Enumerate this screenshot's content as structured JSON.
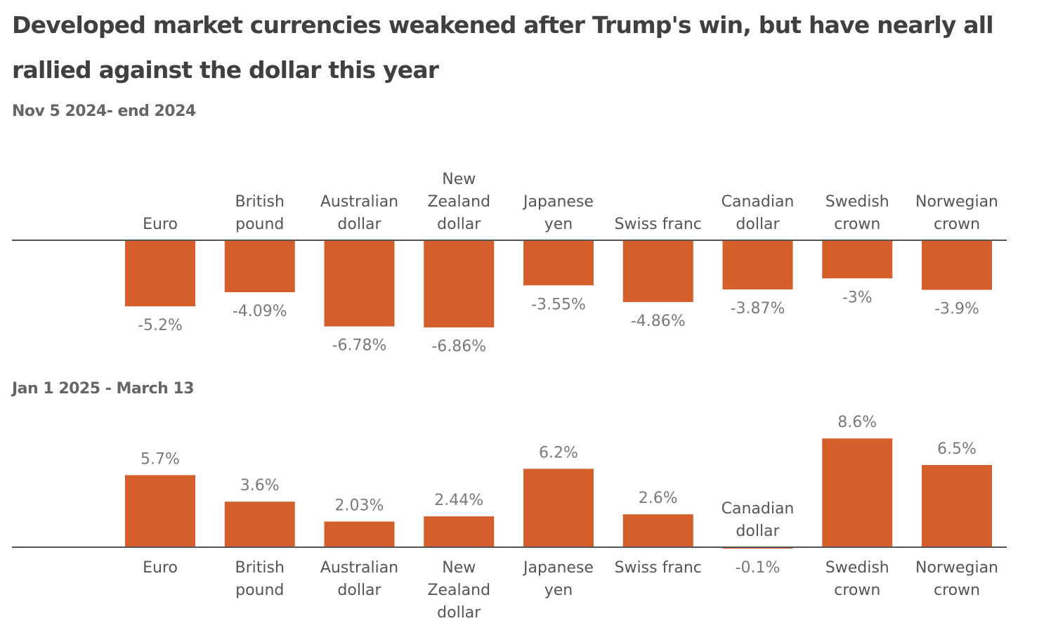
{
  "title": "Developed market currencies weakened after Trump's win, but have nearly all rallied against the dollar this year",
  "colors": {
    "bar": "#d45f2b",
    "axis": "#555555",
    "title": "#404040",
    "subtitle": "#666666",
    "value_label": "#7a7a7a",
    "category_label": "#555555"
  },
  "chart_data": [
    {
      "type": "bar",
      "title": "Nov 5 2024- end 2024",
      "xlabel": "",
      "ylabel": "",
      "unit": "%",
      "grid": false,
      "category_label_position": "above-axis",
      "categories": [
        [
          "Euro"
        ],
        [
          "British",
          "pound"
        ],
        [
          "Australian",
          "dollar"
        ],
        [
          "New",
          "Zealand",
          "dollar"
        ],
        [
          "Japanese",
          "yen"
        ],
        [
          "Swiss franc"
        ],
        [
          "Canadian",
          "dollar"
        ],
        [
          "Swedish",
          "crown"
        ],
        [
          "Norwegian",
          "crown"
        ]
      ],
      "values": [
        -5.2,
        -4.09,
        -6.78,
        -6.86,
        -3.55,
        -4.86,
        -3.87,
        -3.0,
        -3.9
      ],
      "value_labels": [
        "-5.2%",
        "-4.09%",
        "-6.78%",
        "-6.86%",
        "-3.55%",
        "-4.86%",
        "-3.87%",
        "-3%",
        "-3.9%"
      ],
      "ylim": [
        -7,
        0
      ]
    },
    {
      "type": "bar",
      "title": "Jan 1 2025 - March 13",
      "xlabel": "",
      "ylabel": "",
      "unit": "%",
      "grid": false,
      "category_label_position": "below-axis",
      "categories": [
        [
          "Euro"
        ],
        [
          "British",
          "pound"
        ],
        [
          "Australian",
          "dollar"
        ],
        [
          "New",
          "Zealand",
          "dollar"
        ],
        [
          "Japanese",
          "yen"
        ],
        [
          "Swiss franc"
        ],
        [
          "Canadian",
          "dollar"
        ],
        [
          "Swedish",
          "crown"
        ],
        [
          "Norwegian",
          "crown"
        ]
      ],
      "values": [
        5.7,
        3.6,
        2.03,
        2.44,
        6.2,
        2.6,
        -0.1,
        8.6,
        6.5
      ],
      "value_labels": [
        "5.7%",
        "3.6%",
        "2.03%",
        "2.44%",
        "6.2%",
        "2.6%",
        "-0.1%",
        "8.6%",
        "6.5%"
      ],
      "ylim": [
        -0.5,
        9
      ]
    }
  ]
}
